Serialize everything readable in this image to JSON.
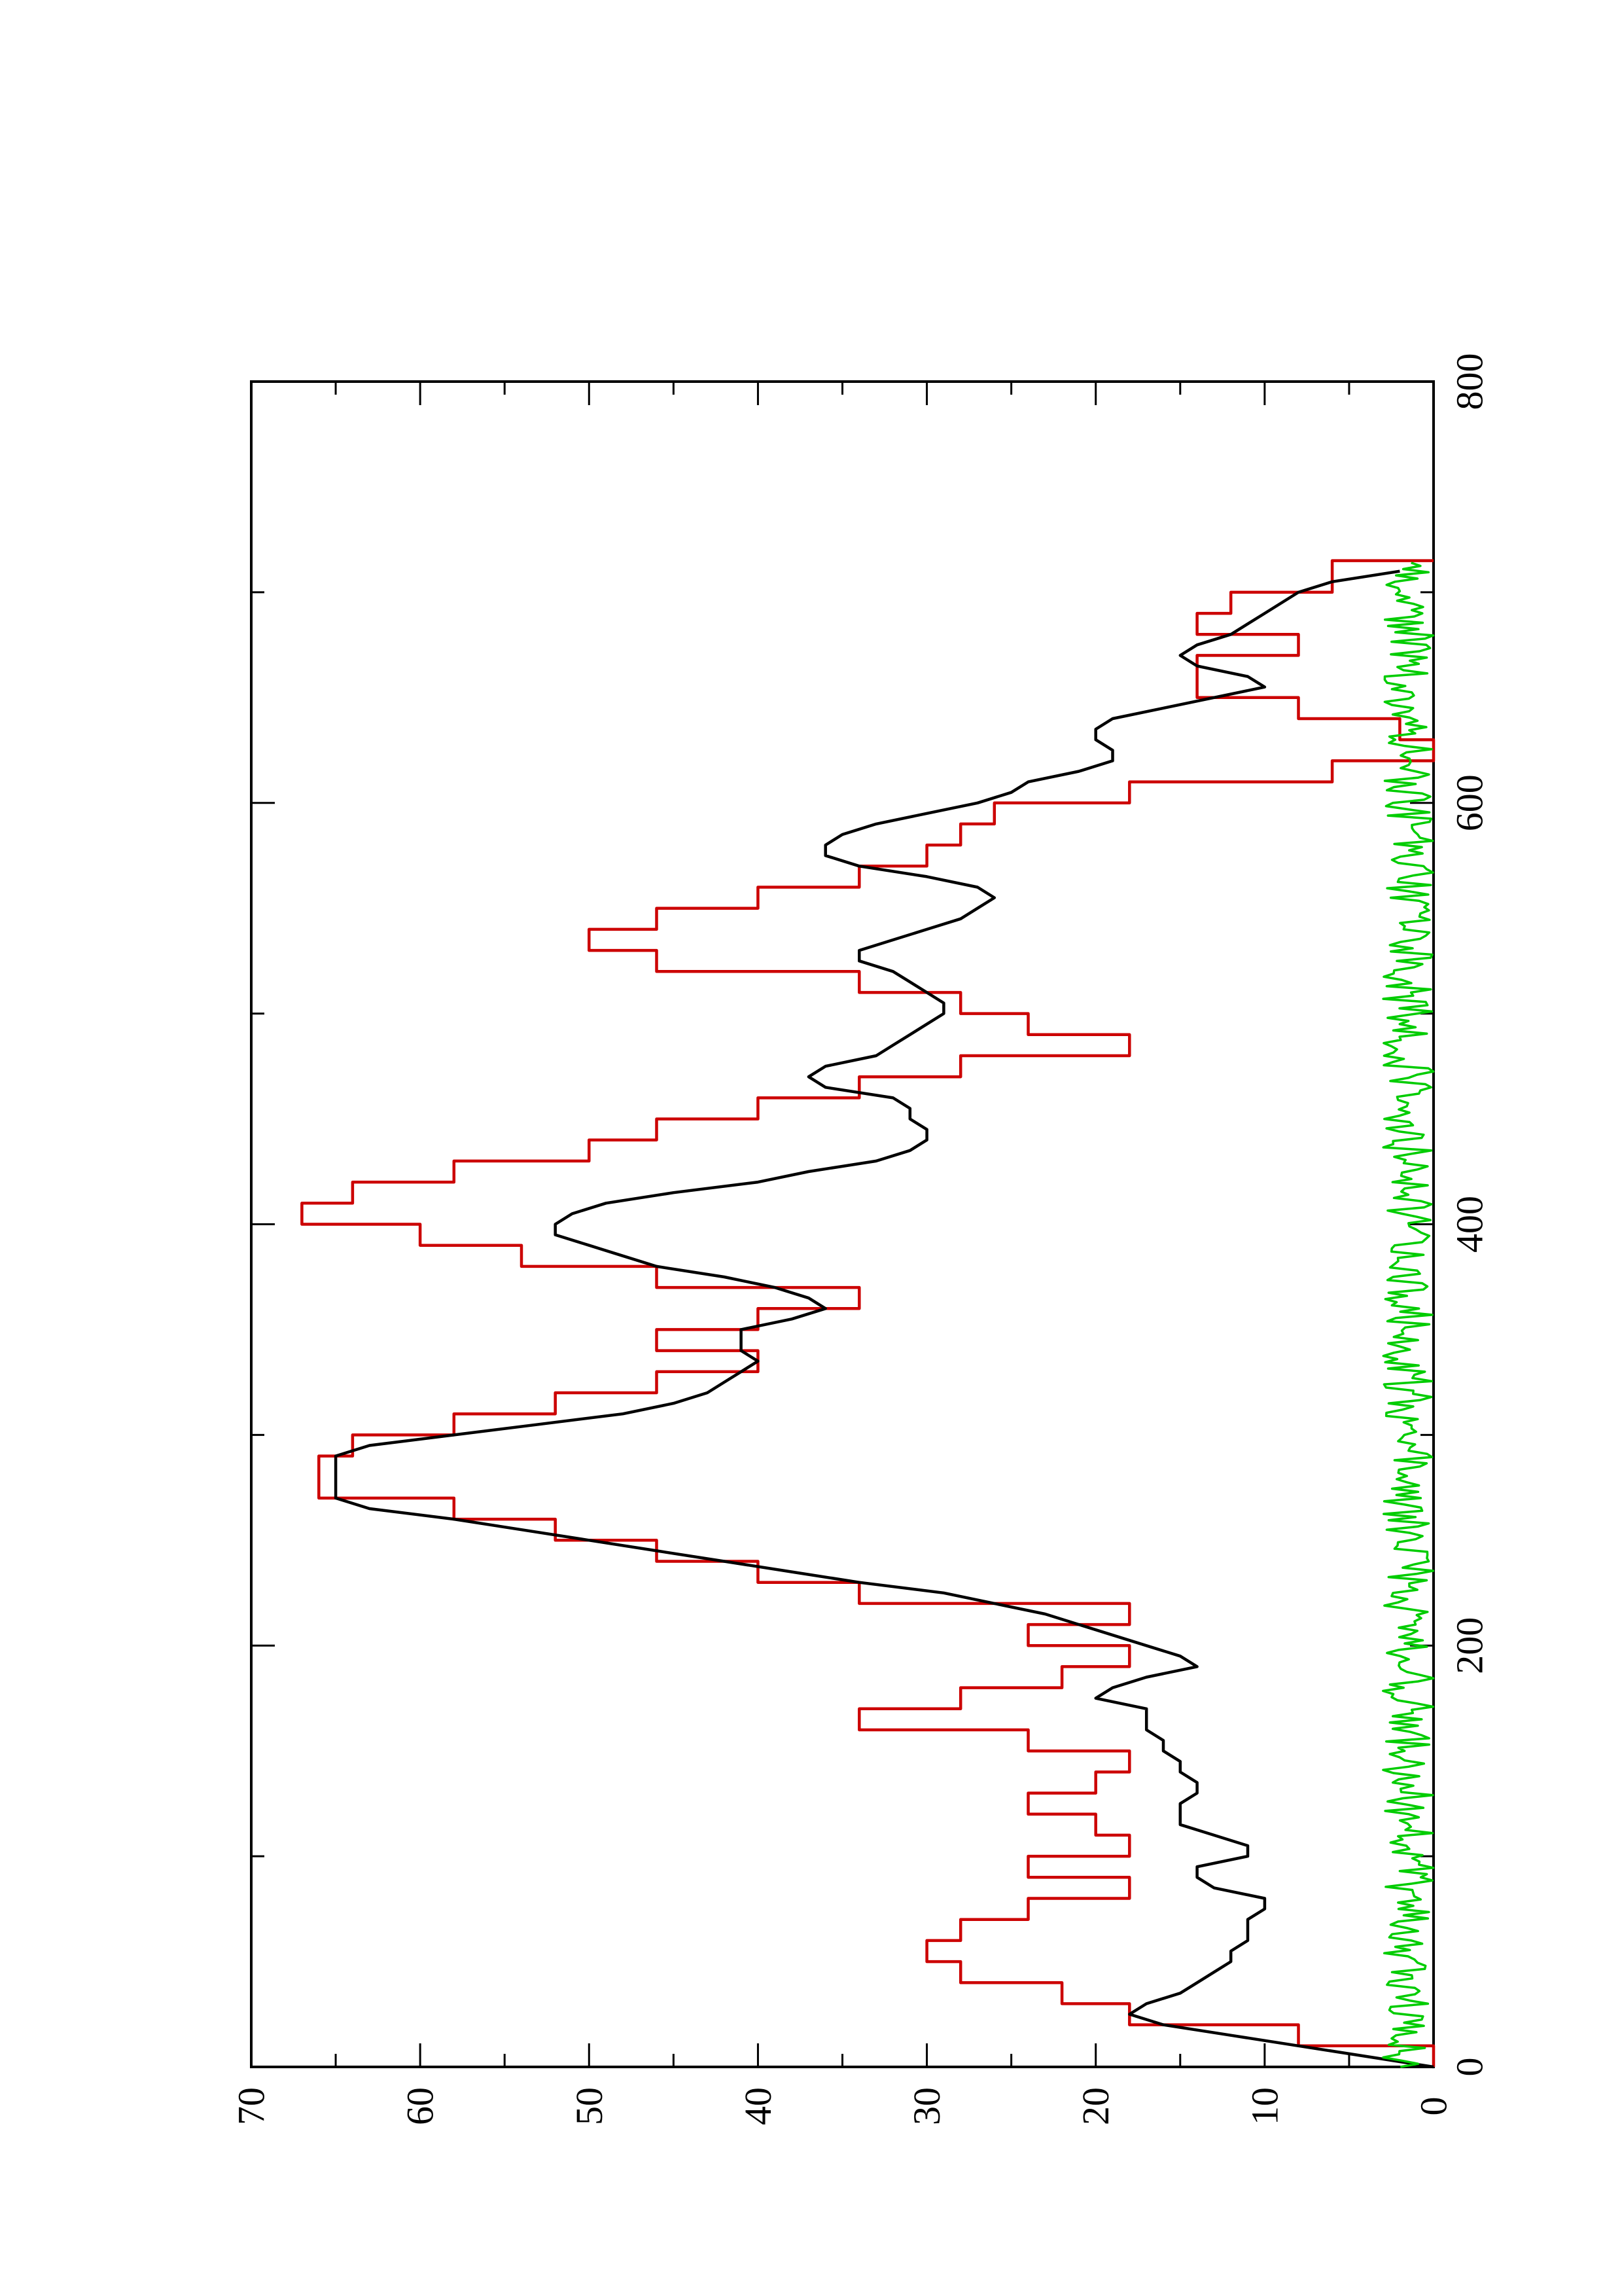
{
  "chart_data": {
    "type": "line",
    "xlim": [
      0,
      800
    ],
    "ylim": [
      0,
      70
    ],
    "xticks": [
      "0",
      "200",
      "400",
      "600",
      "800"
    ],
    "yticks": [
      "0",
      "10",
      "20",
      "30",
      "40",
      "50",
      "60",
      "70"
    ],
    "x_minor_step": 100,
    "y_minor_step": 5,
    "grid": false,
    "legend": "none",
    "orientation": "rotated 90 degrees counter-clockwise on the page",
    "series": [
      {
        "color": "#cc0000",
        "style": "step",
        "x": [
          0,
          10,
          20,
          30,
          40,
          50,
          60,
          70,
          80,
          90,
          100,
          110,
          120,
          130,
          140,
          150,
          160,
          170,
          180,
          190,
          200,
          210,
          220,
          230,
          240,
          250,
          260,
          270,
          280,
          290,
          300,
          310,
          320,
          330,
          340,
          350,
          360,
          370,
          380,
          390,
          400,
          410,
          420,
          430,
          440,
          450,
          460,
          470,
          480,
          490,
          500,
          510,
          520,
          530,
          540,
          550,
          560,
          570,
          580,
          590,
          600,
          610,
          620,
          630,
          640,
          650,
          660,
          670,
          680,
          690,
          700,
          710,
          715
        ],
        "y": [
          0,
          8,
          18,
          22,
          28,
          30,
          28,
          24,
          18,
          24,
          18,
          20,
          24,
          20,
          18,
          24,
          34,
          28,
          22,
          18,
          24,
          18,
          34,
          40,
          46,
          52,
          58,
          66,
          66,
          64,
          58,
          52,
          46,
          40,
          46,
          40,
          34,
          46,
          54,
          60,
          67,
          64,
          58,
          50,
          46,
          40,
          34,
          28,
          18,
          24,
          28,
          34,
          46,
          50,
          46,
          40,
          34,
          30,
          28,
          26,
          18,
          6,
          0,
          2,
          8,
          14,
          14,
          8,
          14,
          12,
          6,
          6,
          0
        ]
      },
      {
        "color": "#000000",
        "style": "line",
        "x": [
          0,
          5,
          10,
          15,
          20,
          25,
          30,
          35,
          40,
          45,
          50,
          55,
          60,
          65,
          70,
          75,
          80,
          85,
          90,
          95,
          100,
          105,
          110,
          115,
          120,
          125,
          130,
          135,
          140,
          145,
          150,
          155,
          160,
          165,
          170,
          175,
          180,
          185,
          190,
          195,
          200,
          205,
          210,
          215,
          220,
          225,
          230,
          235,
          240,
          245,
          250,
          255,
          260,
          265,
          270,
          275,
          280,
          285,
          290,
          295,
          300,
          305,
          310,
          315,
          320,
          325,
          330,
          335,
          340,
          345,
          350,
          355,
          360,
          365,
          370,
          375,
          380,
          385,
          390,
          395,
          400,
          405,
          410,
          415,
          420,
          425,
          430,
          435,
          440,
          445,
          450,
          455,
          460,
          465,
          470,
          475,
          480,
          485,
          490,
          495,
          500,
          505,
          510,
          515,
          520,
          525,
          530,
          535,
          540,
          545,
          550,
          555,
          560,
          565,
          570,
          575,
          580,
          585,
          590,
          595,
          600,
          605,
          610,
          615,
          620,
          625,
          630,
          635,
          640,
          645,
          650,
          655,
          660,
          665,
          670,
          675,
          680,
          685,
          690,
          695,
          700,
          705,
          710
        ],
        "y": [
          0,
          4,
          8,
          12,
          16,
          18,
          17,
          15,
          14,
          13,
          12,
          12,
          11,
          11,
          11,
          10,
          10,
          13,
          14,
          14,
          11,
          11,
          13,
          15,
          15,
          15,
          14,
          14,
          15,
          15,
          16,
          16,
          17,
          17,
          17,
          20,
          19,
          17,
          14,
          15,
          17,
          19,
          21,
          23,
          26,
          29,
          34,
          38,
          42,
          46,
          50,
          54,
          58,
          63,
          65,
          65,
          65,
          65,
          65,
          63,
          58,
          53,
          48,
          45,
          43,
          42,
          41,
          40,
          41,
          41,
          41,
          38,
          36,
          37,
          39,
          42,
          46,
          48,
          50,
          52,
          52,
          51,
          49,
          45,
          40,
          37,
          33,
          31,
          30,
          30,
          31,
          31,
          32,
          36,
          37,
          36,
          33,
          32,
          31,
          30,
          29,
          29,
          30,
          31,
          32,
          34,
          34,
          32,
          30,
          28,
          27,
          26,
          27,
          30,
          34,
          36,
          36,
          35,
          33,
          30,
          27,
          25,
          24,
          21,
          19,
          19,
          20,
          20,
          19,
          16,
          13,
          10,
          11,
          14,
          15,
          14,
          12,
          11,
          10,
          9,
          8,
          6,
          2
        ]
      },
      {
        "color": "#00cc00",
        "style": "line",
        "noise": true,
        "x_range": [
          0,
          715
        ],
        "y_range": [
          0,
          3
        ]
      }
    ]
  }
}
